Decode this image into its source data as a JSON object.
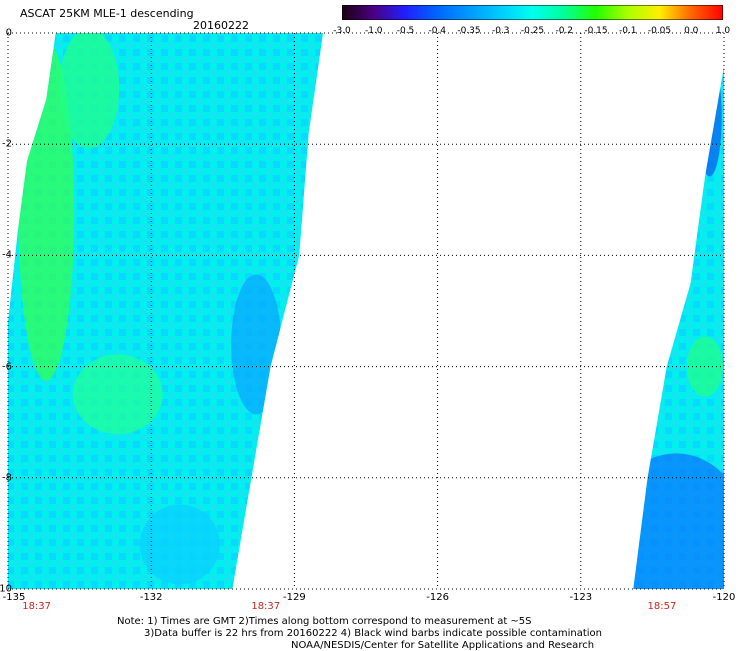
{
  "header": {
    "title": "ASCAT 25KM MLE-1 descending",
    "date": "20160222"
  },
  "colorbar": {
    "labels": [
      "-3.0",
      "-1.0",
      "-0.5",
      "-0.4",
      "-0.35",
      "-0.3",
      "-0.25",
      "-0.2",
      "-0.15",
      "-0.1",
      "-0.05",
      "0.0",
      "1.0"
    ],
    "stops": [
      "#1a0010",
      "#4b0082",
      "#2020ff",
      "#0066ff",
      "#0099ff",
      "#00ccff",
      "#00ffee",
      "#00ff99",
      "#22ff00",
      "#aaff00",
      "#ffee00",
      "#ff6600",
      "#ff0000"
    ]
  },
  "map": {
    "lat_ticks": [
      "0",
      "-2",
      "-4",
      "-6",
      "-8",
      "-10"
    ],
    "lon_ticks": [
      "-135",
      "-132",
      "-129",
      "-126",
      "-123",
      "-120"
    ],
    "lat_range": [
      -10,
      0
    ],
    "lon_range": [
      -135,
      -120
    ],
    "time_labels": [
      {
        "text": "18:37",
        "lon": -134.4
      },
      {
        "text": "18:37",
        "lon": -129.6
      },
      {
        "text": "18:57",
        "lon": -121.3
      }
    ],
    "swaths": [
      {
        "name": "west",
        "west": [
          [
            0,
            -134.0
          ],
          [
            -1.2,
            -134.2
          ],
          [
            -2.3,
            -134.6
          ],
          [
            -3.6,
            -134.8
          ],
          [
            -5.2,
            -135.0
          ],
          [
            -10,
            -135.0
          ]
        ],
        "east": [
          [
            0,
            -128.4
          ],
          [
            -1.8,
            -128.7
          ],
          [
            -4.0,
            -128.9
          ],
          [
            -6.0,
            -129.5
          ],
          [
            -8.0,
            -129.9
          ],
          [
            -10,
            -130.3
          ]
        ]
      },
      {
        "name": "east",
        "west": [
          [
            -2.6,
            -120.4
          ],
          [
            -4.5,
            -120.7
          ],
          [
            -6.0,
            -121.2
          ],
          [
            -8.0,
            -121.6
          ],
          [
            -10,
            -121.9
          ]
        ],
        "east": [
          [
            -0.6,
            -120.0
          ],
          [
            -10,
            -120.0
          ]
        ]
      }
    ]
  },
  "notes": {
    "line1": "Note: 1) Times are GMT 2)Times along bottom correspond to measurement at ~5S",
    "line2": "3)Data buffer is 22 hrs from 20160222 4) Black wind barbs indicate possible contamination",
    "line3": "NOAA/NESDIS/Center for Satellite Applications and Research"
  }
}
